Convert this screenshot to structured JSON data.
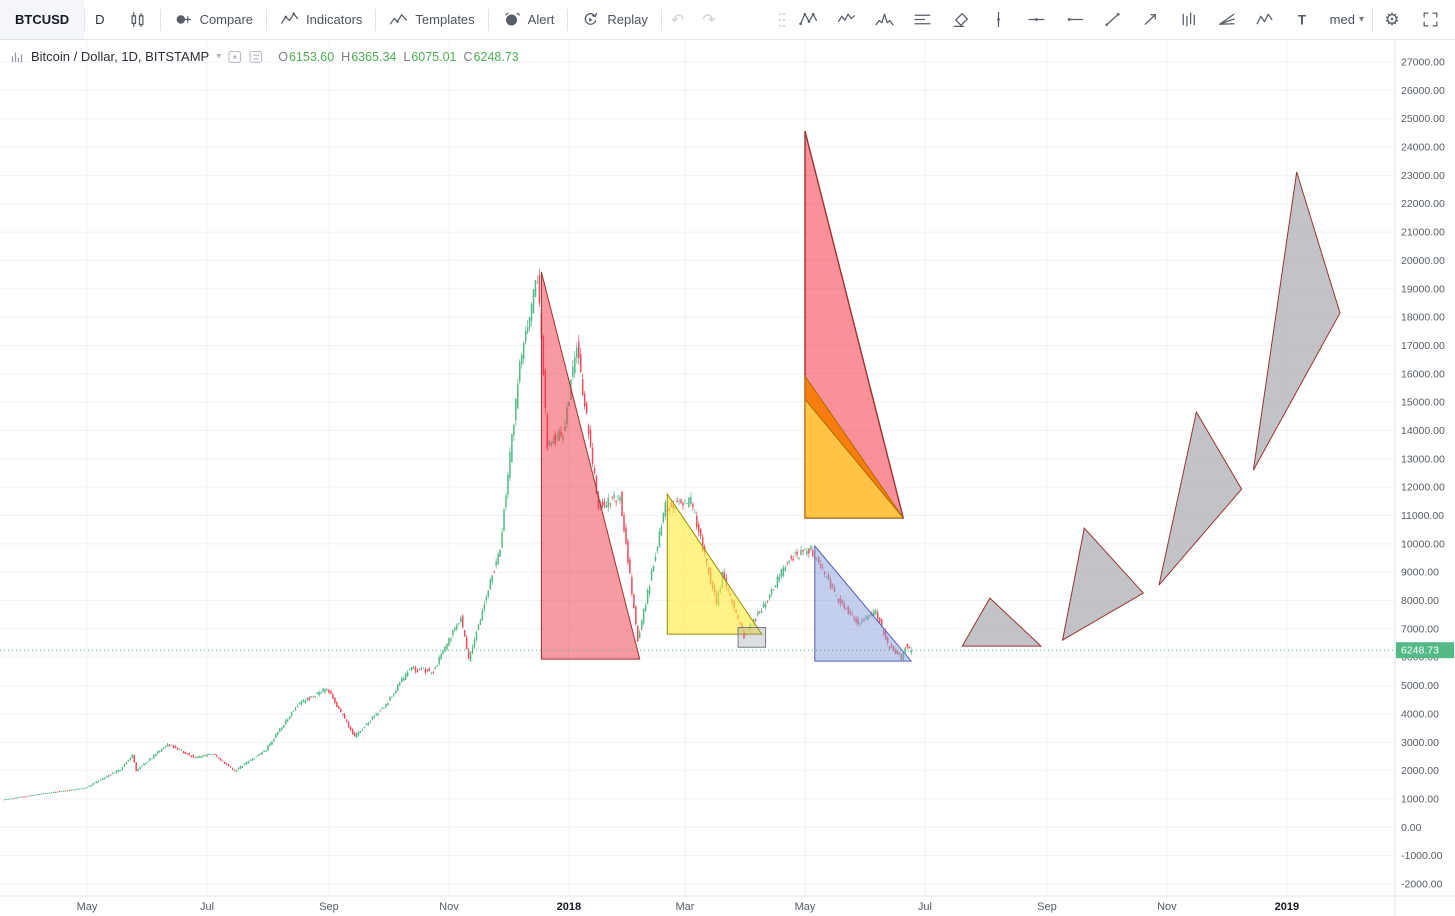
{
  "toolbar": {
    "symbol": "BTCUSD",
    "interval": "D",
    "compare": "Compare",
    "indicators": "Indicators",
    "templates": "Templates",
    "alert": "Alert",
    "replay": "Replay",
    "layout_name": "med",
    "right_tools": [
      "xabcd-pattern-icon",
      "elliott-wave-icon",
      "head-shoulders-icon",
      "horizontal-lines-icon",
      "eraser-icon",
      "vertical-line-icon",
      "horizontal-line-icon",
      "horizontal-ray-icon",
      "trend-line-icon",
      "arrow-icon",
      "bars-pattern-icon",
      "fan-lines-icon",
      "zigzag-icon",
      "text-icon"
    ]
  },
  "legend": {
    "title": "Bitcoin / Dollar, 1D, BITSTAMP",
    "ohlc": [
      {
        "label": "O",
        "value": "6153.60"
      },
      {
        "label": "H",
        "value": "6365.34"
      },
      {
        "label": "L",
        "value": "6075.01"
      },
      {
        "label": "C",
        "value": "6248.73"
      }
    ]
  },
  "chart_data": {
    "type": "candlestick",
    "symbol": "Bitcoin / Dollar",
    "interval": "1D",
    "exchange": "BITSTAMP",
    "seed": 11,
    "days": 461,
    "last": {
      "open": 6153.6,
      "high": 6365.34,
      "low": 6075.01,
      "close": 6248.73
    },
    "price_line": 6248.73,
    "y_axis": {
      "min": -2000,
      "max": 27000,
      "step": 1000
    },
    "x_axis": {
      "ticks": [
        {
          "label": "May",
          "day": 42
        },
        {
          "label": "Jul",
          "day": 103
        },
        {
          "label": "Sep",
          "day": 165
        },
        {
          "label": "Nov",
          "day": 226
        },
        {
          "label": "2018",
          "day": 287,
          "strong": true
        },
        {
          "label": "Mar",
          "day": 346
        },
        {
          "label": "May",
          "day": 407
        },
        {
          "label": "Jul",
          "day": 468
        },
        {
          "label": "Sep",
          "day": 530
        },
        {
          "label": "Nov",
          "day": 591
        },
        {
          "label": "2019",
          "day": 652,
          "strong": true
        }
      ]
    },
    "colors": {
      "up": "#53b987",
      "down": "#eb4d5c",
      "grid": "#f0f2f5",
      "axis_text": "#555d66",
      "axis_border": "#e0e3eb",
      "price_label_bg": "#53b987"
    },
    "price_path": [
      [
        0,
        970
      ],
      [
        21,
        1190
      ],
      [
        42,
        1390
      ],
      [
        60,
        2050
      ],
      [
        66,
        2550
      ],
      [
        68,
        2000
      ],
      [
        84,
        2950
      ],
      [
        98,
        2450
      ],
      [
        107,
        2600
      ],
      [
        118,
        1990
      ],
      [
        134,
        2750
      ],
      [
        150,
        4350
      ],
      [
        165,
        4900
      ],
      [
        179,
        3200
      ],
      [
        195,
        4350
      ],
      [
        207,
        5600
      ],
      [
        219,
        5500
      ],
      [
        233,
        7400
      ],
      [
        237,
        5900
      ],
      [
        253,
        9900
      ],
      [
        263,
        16200
      ],
      [
        272,
        19500
      ],
      [
        277,
        13500
      ],
      [
        285,
        13900
      ],
      [
        292,
        17000
      ],
      [
        303,
        11300
      ],
      [
        314,
        11700
      ],
      [
        323,
        6600
      ],
      [
        337,
        11300
      ],
      [
        350,
        11500
      ],
      [
        363,
        7900
      ],
      [
        366,
        8900
      ],
      [
        377,
        6750
      ],
      [
        388,
        7950
      ],
      [
        400,
        9500
      ],
      [
        411,
        9800
      ],
      [
        424,
        8150
      ],
      [
        435,
        7200
      ],
      [
        444,
        7650
      ],
      [
        450,
        6450
      ],
      [
        457,
        5950
      ],
      [
        459,
        6400
      ],
      [
        461,
        6248.73
      ]
    ],
    "drawings": [
      {
        "name": "triangle-dec-feb-decline",
        "type": "polygon",
        "points": [
          [
            273,
            19590
          ],
          [
            323,
            5936
          ],
          [
            273,
            5936
          ]
        ],
        "fill": "#f23645",
        "fill_opacity": 0.5,
        "stroke": "#a03030",
        "stroke_width": 1
      },
      {
        "name": "triangle-mar-apr-decline",
        "type": "polygon",
        "points": [
          [
            337,
            11756
          ],
          [
            385,
            6817
          ],
          [
            337,
            6817
          ]
        ],
        "fill": "#ffeb3b",
        "fill_opacity": 0.62,
        "stroke": "#9a8b00",
        "stroke_width": 1
      },
      {
        "name": "highlight-box-april-low",
        "type": "polygon",
        "points": [
          [
            373,
            7050
          ],
          [
            387,
            7050
          ],
          [
            387,
            6350
          ],
          [
            373,
            6350
          ]
        ],
        "fill": "#9598a1",
        "fill_opacity": 0.32,
        "stroke": "#787b86",
        "stroke_width": 1
      },
      {
        "name": "triangle-may-jun-decline",
        "type": "polygon",
        "points": [
          [
            412,
            9923
          ],
          [
            461,
            5865
          ],
          [
            412,
            5865
          ]
        ],
        "fill": "#8da2dd",
        "fill_opacity": 0.52,
        "stroke": "#5560b5",
        "stroke_width": 1
      },
      {
        "name": "triangle-projection-red",
        "type": "polygon",
        "points": [
          [
            407,
            24565
          ],
          [
            457,
            10911
          ],
          [
            407,
            10911
          ]
        ],
        "fill": "#f23645",
        "fill_opacity": 0.55,
        "stroke": "#a03030",
        "stroke_width": 1.4
      },
      {
        "name": "triangle-projection-orange",
        "type": "polygon",
        "points": [
          [
            407,
            15920
          ],
          [
            457,
            10911
          ],
          [
            407,
            10911
          ]
        ],
        "fill": "#f57c00",
        "fill_opacity": 0.9,
        "stroke": "#b26a00",
        "stroke_width": 1
      },
      {
        "name": "triangle-projection-yellow",
        "type": "polygon",
        "points": [
          [
            407,
            15100
          ],
          [
            457,
            10911
          ],
          [
            407,
            10911
          ]
        ],
        "fill": "#ffc84a",
        "fill_opacity": 0.95,
        "stroke": "#b26a00",
        "stroke_width": 1
      },
      {
        "name": "triangle-forecast-aug",
        "type": "polygon",
        "points": [
          [
            501,
            8087
          ],
          [
            527,
            6394
          ],
          [
            487,
            6394
          ]
        ],
        "fill": "#b6b8bc",
        "fill_opacity": 0.85,
        "stroke": "#993333",
        "stroke_width": 1
      },
      {
        "name": "triangle-forecast-sep-oct",
        "type": "polygon",
        "points": [
          [
            549,
            10557
          ],
          [
            579,
            8264
          ],
          [
            538,
            6605
          ]
        ],
        "fill": "#b6b8bc",
        "fill_opacity": 0.85,
        "stroke": "#993333",
        "stroke_width": 1
      },
      {
        "name": "triangle-forecast-nov",
        "type": "polygon",
        "points": [
          [
            606,
            14650
          ],
          [
            629,
            11933
          ],
          [
            587,
            8546
          ]
        ],
        "fill": "#b6b8bc",
        "fill_opacity": 0.85,
        "stroke": "#993333",
        "stroke_width": 1
      },
      {
        "name": "triangle-forecast-dec-jan",
        "type": "polygon",
        "points": [
          [
            657,
            23119
          ],
          [
            679,
            18144
          ],
          [
            635,
            12603
          ]
        ],
        "fill": "#b6b8bc",
        "fill_opacity": 0.85,
        "stroke": "#993333",
        "stroke_width": 1
      }
    ]
  }
}
